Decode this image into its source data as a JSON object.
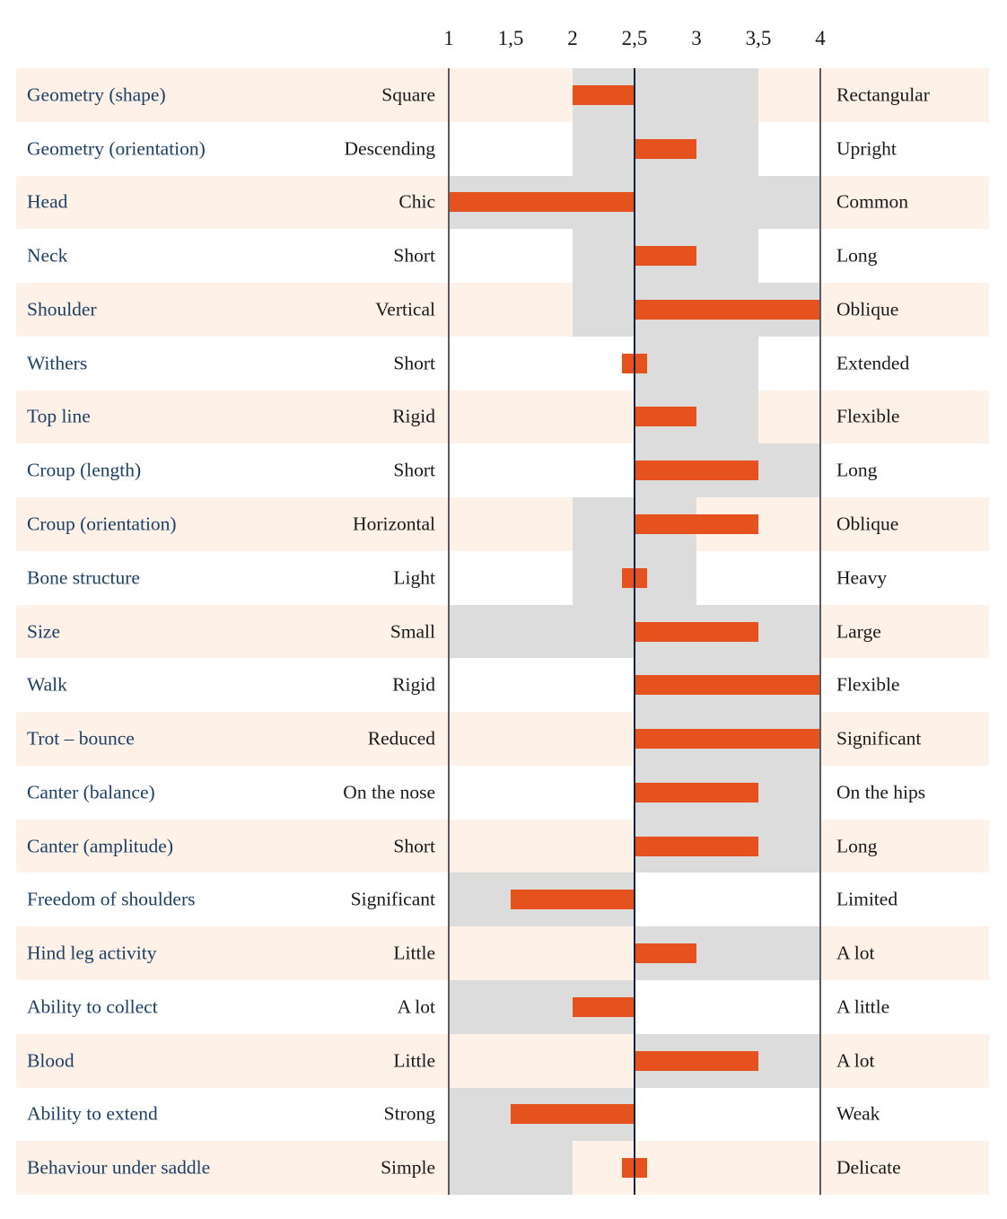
{
  "chart_data": {
    "type": "bar",
    "subtype": "diverging-range-bars",
    "title": "",
    "axis": {
      "tick_labels": [
        "1",
        "1,5",
        "2",
        "2,5",
        "3",
        "3,5",
        "4"
      ],
      "tick_values": [
        1,
        1.5,
        2,
        2.5,
        3,
        3.5,
        4
      ],
      "xmin": 1,
      "xmax": 4,
      "reference_lines": [
        1,
        2.5,
        4
      ],
      "grid": false,
      "legend": "none"
    },
    "rows": [
      {
        "label": "Geometry (shape)",
        "left": "Square",
        "right": "Rectangular",
        "band": [
          2,
          3.5
        ],
        "bar": [
          2,
          2.5
        ]
      },
      {
        "label": "Geometry (orientation)",
        "left": "Descending",
        "right": "Upright",
        "band": [
          2,
          3.5
        ],
        "bar": [
          2.5,
          3
        ]
      },
      {
        "label": "Head",
        "left": "Chic",
        "right": "Common",
        "band": [
          1,
          4
        ],
        "bar": [
          1,
          2.5
        ]
      },
      {
        "label": "Neck",
        "left": "Short",
        "right": "Long",
        "band": [
          2,
          3.5
        ],
        "bar": [
          2.5,
          3
        ]
      },
      {
        "label": "Shoulder",
        "left": "Vertical",
        "right": "Oblique",
        "band": [
          2,
          4
        ],
        "bar": [
          2.5,
          4
        ]
      },
      {
        "label": "Withers",
        "left": "Short",
        "right": "Extended",
        "band": [
          2.5,
          3.5
        ],
        "bar": [
          2.4,
          2.6
        ]
      },
      {
        "label": "Top line",
        "left": "Rigid",
        "right": "Flexible",
        "band": [
          2.5,
          3.5
        ],
        "bar": [
          2.5,
          3
        ]
      },
      {
        "label": "Croup (length)",
        "left": "Short",
        "right": "Long",
        "band": [
          2.5,
          4
        ],
        "bar": [
          2.5,
          3.5
        ]
      },
      {
        "label": "Croup (orientation)",
        "left": "Horizontal",
        "right": "Oblique",
        "band": [
          2,
          3
        ],
        "bar": [
          2.5,
          3.5
        ]
      },
      {
        "label": "Bone structure",
        "left": "Light",
        "right": "Heavy",
        "band": [
          2,
          3
        ],
        "bar": [
          2.4,
          2.6
        ]
      },
      {
        "label": "Size",
        "left": "Small",
        "right": "Large",
        "band": [
          1,
          4
        ],
        "bar": [
          2.5,
          3.5
        ]
      },
      {
        "label": "Walk",
        "left": "Rigid",
        "right": "Flexible",
        "band": [
          2.5,
          4
        ],
        "bar": [
          2.5,
          4
        ]
      },
      {
        "label": "Trot – bounce",
        "left": "Reduced",
        "right": "Significant",
        "band": [
          2.5,
          4
        ],
        "bar": [
          2.5,
          4
        ]
      },
      {
        "label": "Canter (balance)",
        "left": "On the nose",
        "right": "On the hips",
        "band": [
          2.5,
          4
        ],
        "bar": [
          2.5,
          3.5
        ]
      },
      {
        "label": "Canter (amplitude)",
        "left": "Short",
        "right": "Long",
        "band": [
          2.5,
          4
        ],
        "bar": [
          2.5,
          3.5
        ]
      },
      {
        "label": "Freedom of shoulders",
        "left": "Significant",
        "right": "Limited",
        "band": [
          1,
          2.5
        ],
        "bar": [
          1.5,
          2.5
        ]
      },
      {
        "label": "Hind leg activity",
        "left": "Little",
        "right": "A lot",
        "band": [
          2.5,
          4
        ],
        "bar": [
          2.5,
          3
        ]
      },
      {
        "label": "Ability to collect",
        "left": "A lot",
        "right": "A little",
        "band": [
          1,
          2.5
        ],
        "bar": [
          2,
          2.5
        ]
      },
      {
        "label": "Blood",
        "left": "Little",
        "right": "A lot",
        "band": [
          2.5,
          4
        ],
        "bar": [
          2.5,
          3.5
        ]
      },
      {
        "label": "Ability to extend",
        "left": "Strong",
        "right": "Weak",
        "band": [
          1,
          2.5
        ],
        "bar": [
          1.5,
          2.5
        ]
      },
      {
        "label": "Behaviour under saddle",
        "left": "Simple",
        "right": "Delicate",
        "band": [
          1,
          2
        ],
        "bar": [
          2.4,
          2.6
        ]
      }
    ]
  },
  "colors": {
    "bar_orange": "#e6521d",
    "band_gray": "#dcdcdc",
    "row_pink": "#fdf1e8",
    "row_white": "#ffffff",
    "label_navy": "#1d4066",
    "text_black": "#1a1a1a",
    "center_line": "#13233c",
    "side_line": "#5a5a64"
  }
}
